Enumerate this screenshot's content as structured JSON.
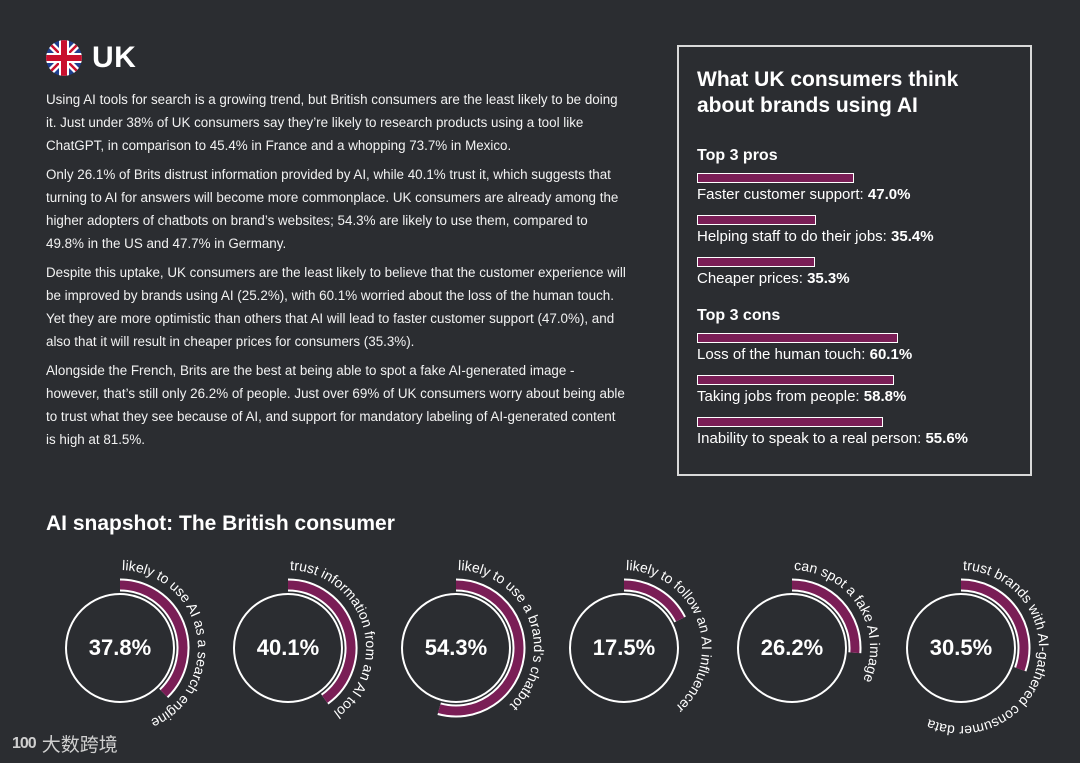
{
  "header": {
    "country": "UK",
    "flag_icon": "uk-flag-icon"
  },
  "body": {
    "paragraphs": [
      "Using AI tools for search is a growing trend, but British consumers are the least likely to be doing it. Just under 38% of UK consumers say they’re likely to research products using a tool like ChatGPT, in comparison to 45.4% in France and a whopping 73.7% in Mexico.",
      "Only 26.1% of Brits distrust information provided by AI, while 40.1% trust it, which suggests that turning to AI for answers will become more commonplace. UK consumers are already among the higher adopters of chatbots on brand’s websites; 54.3% are likely to use them, compared to 49.8% in the US and 47.7% in Germany.",
      "Despite this uptake, UK consumers are the least likely to believe that the customer experience will be improved by brands using AI (25.2%), with 60.1% worried about the loss of the human touch. Yet they are more optimistic than others that AI will lead to faster customer support (47.0%), and also that it will result in cheaper prices for consumers (35.3%).",
      "Alongside the French, Brits are the best at being able to spot a fake AI-generated image - however, that’s still only 26.2% of people. Just over 69% of UK consumers worry about being able to trust what they see because of AI, and support for mandatory labeling of AI-generated content is high at 81.5%."
    ]
  },
  "panel": {
    "title": "What UK consumers think about brands using AI",
    "pros_title": "Top 3 pros",
    "pros": [
      {
        "label": "Faster customer support: ",
        "value": "47.0%",
        "pct": 47.0
      },
      {
        "label": "Helping staff to do their jobs: ",
        "value": "35.4%",
        "pct": 35.4
      },
      {
        "label": "Cheaper prices: ",
        "value": "35.3%",
        "pct": 35.3
      }
    ],
    "cons_title": "Top 3 cons",
    "cons": [
      {
        "label": "Loss of the human touch: ",
        "value": "60.1%",
        "pct": 60.1
      },
      {
        "label": "Taking jobs from people: ",
        "value": "58.8%",
        "pct": 58.8
      },
      {
        "label": "Inability to speak to a real person: ",
        "value": "55.6%",
        "pct": 55.6
      }
    ]
  },
  "snapshot": {
    "title": "AI snapshot: The British consumer",
    "gauges": [
      {
        "value": "37.8%",
        "pct": 37.8,
        "label": "likely to use AI as a search engine"
      },
      {
        "value": "40.1%",
        "pct": 40.1,
        "label": "trust information from an AI tool"
      },
      {
        "value": "54.3%",
        "pct": 54.3,
        "label": "likely to use a brand's chatbot"
      },
      {
        "value": "17.5%",
        "pct": 17.5,
        "label": "likely to follow an AI influencer"
      },
      {
        "value": "26.2%",
        "pct": 26.2,
        "label": "can spot a fake AI image"
      },
      {
        "value": "30.5%",
        "pct": 30.5,
        "label": "trust brands with AI-gathered consumer data"
      }
    ]
  },
  "watermark": {
    "logo": "100",
    "text": "大数跨境"
  },
  "colors": {
    "background": "#2b2d31",
    "accent": "#7a1e56",
    "text": "#ffffff"
  }
}
